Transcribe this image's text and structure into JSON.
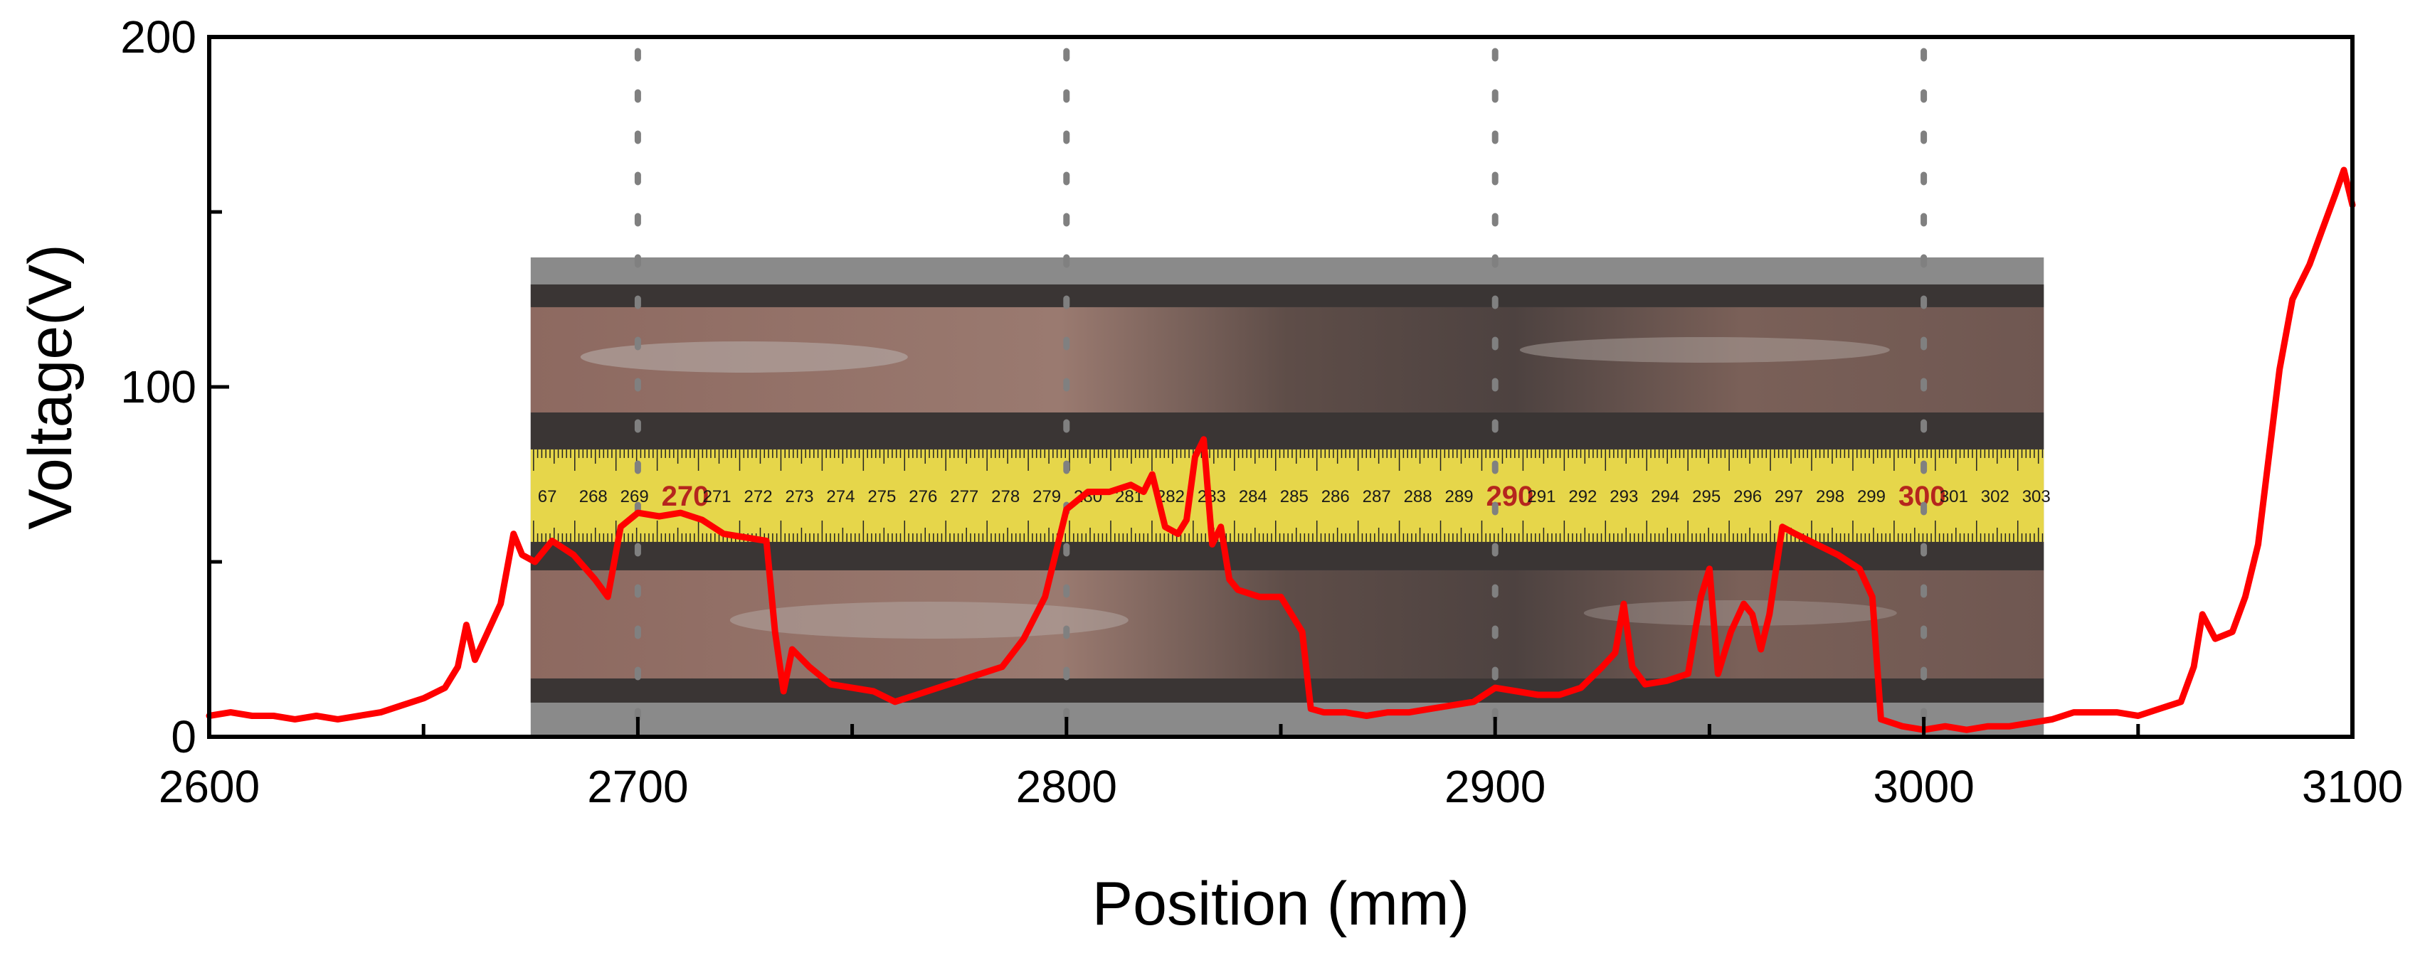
{
  "chart_data": {
    "type": "line",
    "title": "",
    "xlabel": "Position (mm)",
    "ylabel": "Voltage(V)",
    "xlim": [
      2600,
      3100
    ],
    "ylim": [
      0,
      200
    ],
    "x_ticks": [
      "2600",
      "2700",
      "2800",
      "2900",
      "3000",
      "3100"
    ],
    "y_ticks": [
      "0",
      "100",
      "200"
    ],
    "grid": false,
    "legend": "none",
    "colors": {
      "line": "#ff0000",
      "dotted_guides": "#808080",
      "axes": "#000000"
    },
    "guide_lines_x": [
      2700,
      2800,
      2900,
      3000
    ],
    "inset_photo": {
      "description_icon": "steel-rail-with-measuring-tape-photo",
      "x_range": [
        2675,
        3028
      ],
      "y_range": [
        0,
        137
      ],
      "tape_labels": [
        "67",
        "268",
        "269",
        "270",
        "271",
        "272",
        "273",
        "274",
        "275",
        "276",
        "277",
        "278",
        "279",
        "280",
        "281",
        "282",
        "283",
        "284",
        "285",
        "286",
        "287",
        "288",
        "289",
        "290",
        "291",
        "292",
        "293",
        "294",
        "295",
        "296",
        "297",
        "298",
        "299",
        "300",
        "301",
        "302",
        "303"
      ],
      "tape_highlight": [
        "270",
        "290",
        "300"
      ],
      "tape_color": "#e6d64a",
      "rail_colors": [
        "#8a6b62",
        "#3a3534",
        "#b5aca8"
      ]
    },
    "series": [
      {
        "x": [
          2600,
          2605,
          2610,
          2615,
          2620,
          2625,
          2630,
          2635,
          2640,
          2645,
          2650,
          2655,
          2658,
          2660,
          2662,
          2665,
          2668,
          2671,
          2673,
          2676,
          2680,
          2685,
          2690,
          2693,
          2696,
          2700,
          2705,
          2710,
          2715,
          2720,
          2725,
          2730,
          2732,
          2734,
          2736,
          2740,
          2745,
          2750,
          2755,
          2760,
          2765,
          2770,
          2775,
          2780,
          2785,
          2790,
          2795,
          2800,
          2805,
          2810,
          2815,
          2818,
          2820,
          2823,
          2826,
          2828,
          2830,
          2832,
          2834,
          2836,
          2838,
          2840,
          2845,
          2850,
          2855,
          2857,
          2860,
          2865,
          2870,
          2875,
          2880,
          2885,
          2890,
          2895,
          2900,
          2905,
          2910,
          2915,
          2920,
          2925,
          2928,
          2930,
          2932,
          2935,
          2940,
          2945,
          2948,
          2950,
          2952,
          2955,
          2958,
          2960,
          2962,
          2964,
          2967,
          2970,
          2975,
          2980,
          2985,
          2988,
          2990,
          2995,
          3000,
          3005,
          3010,
          3015,
          3020,
          3025,
          3030,
          3035,
          3040,
          3045,
          3050,
          3055,
          3060,
          3063,
          3065,
          3068,
          3072,
          3075,
          3078,
          3080,
          3083,
          3086,
          3090,
          3093,
          3096,
          3098,
          3100
        ],
        "y": [
          6,
          7,
          6,
          6,
          5,
          6,
          5,
          6,
          7,
          9,
          11,
          14,
          20,
          32,
          22,
          30,
          38,
          58,
          52,
          50,
          56,
          52,
          45,
          40,
          60,
          64,
          63,
          64,
          62,
          58,
          57,
          56,
          30,
          13,
          25,
          20,
          15,
          14,
          13,
          10,
          12,
          14,
          16,
          18,
          20,
          28,
          40,
          65,
          70,
          70,
          72,
          70,
          75,
          60,
          58,
          62,
          80,
          85,
          55,
          60,
          45,
          42,
          40,
          40,
          30,
          8,
          7,
          7,
          6,
          7,
          7,
          8,
          9,
          10,
          14,
          13,
          12,
          12,
          14,
          20,
          24,
          38,
          20,
          15,
          16,
          18,
          40,
          48,
          18,
          30,
          38,
          35,
          25,
          35,
          60,
          58,
          55,
          52,
          48,
          40,
          5,
          3,
          2,
          3,
          2,
          3,
          3,
          4,
          5,
          7,
          7,
          7,
          6,
          8,
          10,
          20,
          35,
          28,
          30,
          40,
          55,
          75,
          105,
          125,
          135,
          145,
          155,
          162,
          152
        ]
      }
    ]
  }
}
